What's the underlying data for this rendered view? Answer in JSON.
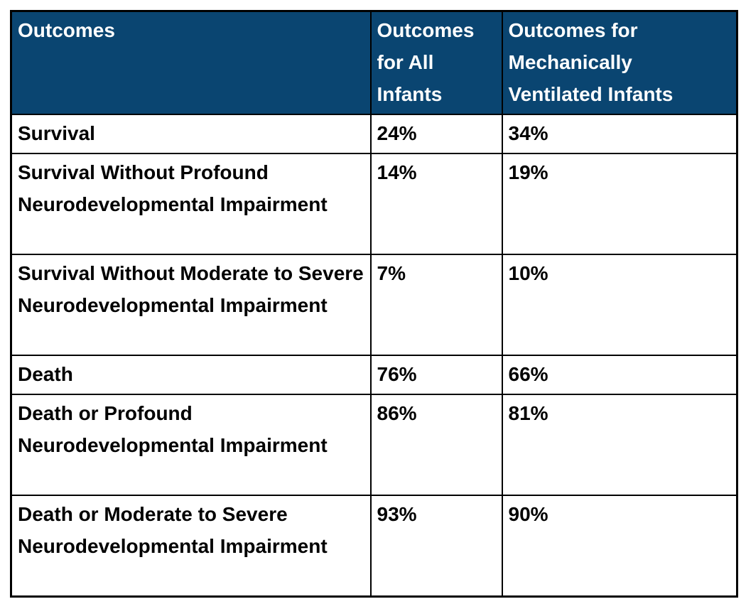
{
  "colors": {
    "header_bg": "#0a4571",
    "header_text": "#ffffff",
    "border": "#000000",
    "body_text": "#000000",
    "background": "#ffffff"
  },
  "table": {
    "columns": [
      {
        "label": "Outcomes"
      },
      {
        "label": "Outcomes for All Infants"
      },
      {
        "label": "Outcomes for Mechanically Ventilated Infants"
      }
    ],
    "rows": [
      {
        "outcome": "Survival",
        "all_infants": "24%",
        "ventilated": "34%"
      },
      {
        "outcome": "Survival Without Profound Neurodevelopmental Impairment",
        "all_infants": "14%",
        "ventilated": "19%"
      },
      {
        "outcome": "Survival Without Moderate to Severe Neurodevelopmental Impairment",
        "all_infants": "7%",
        "ventilated": "10%"
      },
      {
        "outcome": "Death",
        "all_infants": "76%",
        "ventilated": "66%"
      },
      {
        "outcome": "Death or Profound Neurodevelopmental Impairment",
        "all_infants": "86%",
        "ventilated": "81%"
      },
      {
        "outcome": "Death or Moderate to Severe Neurodevelopmental Impairment",
        "all_infants": "93%",
        "ventilated": "90%"
      }
    ]
  },
  "chart_data": {
    "type": "table",
    "columns": [
      "Outcomes",
      "Outcomes for All Infants",
      "Outcomes for Mechanically Ventilated Infants"
    ],
    "rows": [
      [
        "Survival",
        "24%",
        "34%"
      ],
      [
        "Survival Without Profound Neurodevelopmental Impairment",
        "14%",
        "19%"
      ],
      [
        "Survival Without Moderate to Severe Neurodevelopmental Impairment",
        "7%",
        "10%"
      ],
      [
        "Death",
        "76%",
        "66%"
      ],
      [
        "Death or Profound Neurodevelopmental Impairment",
        "86%",
        "81%"
      ],
      [
        "Death or Moderate to Severe Neurodevelopmental Impairment",
        "93%",
        "90%"
      ]
    ]
  }
}
